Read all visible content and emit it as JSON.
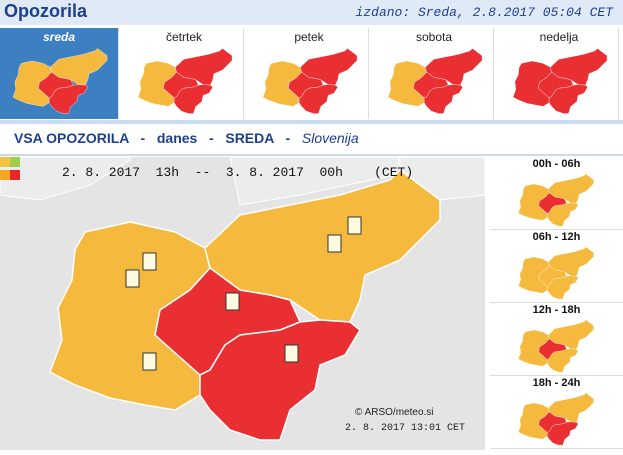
{
  "header": {
    "title": "Opozorila",
    "issued": "izdano: Sreda, 2.8.2017 05:04 CET"
  },
  "tabs": [
    "sreda",
    "četrtek",
    "petek",
    "sobota",
    "nedelja"
  ],
  "heading": {
    "all": "VSA OPOZORILA",
    "sep": "-",
    "today": "danes",
    "day": "SREDA",
    "region": "Slovenija"
  },
  "map": {
    "from_date": "2. 8. 2017",
    "from_hour": "13h",
    "dash": "--",
    "to_date": "3. 8. 2017",
    "to_hour": "00h",
    "zone": "(CET)",
    "credit": "© ARSO/meteo.si",
    "stamp": "2. 8. 2017  13:01 CET"
  },
  "periods": [
    "00h - 06h",
    "06h - 12h",
    "12h - 18h",
    "18h - 24h"
  ]
}
